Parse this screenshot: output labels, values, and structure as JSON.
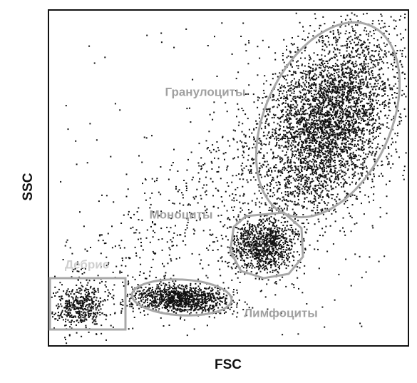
{
  "axes": {
    "x_label": "FSC",
    "y_label": "SSC"
  },
  "populations": [
    {
      "label": "Гранулоциты"
    },
    {
      "label": "Моноциты"
    },
    {
      "label": "Лимфоциты"
    },
    {
      "label": "Дебрис"
    }
  ]
}
